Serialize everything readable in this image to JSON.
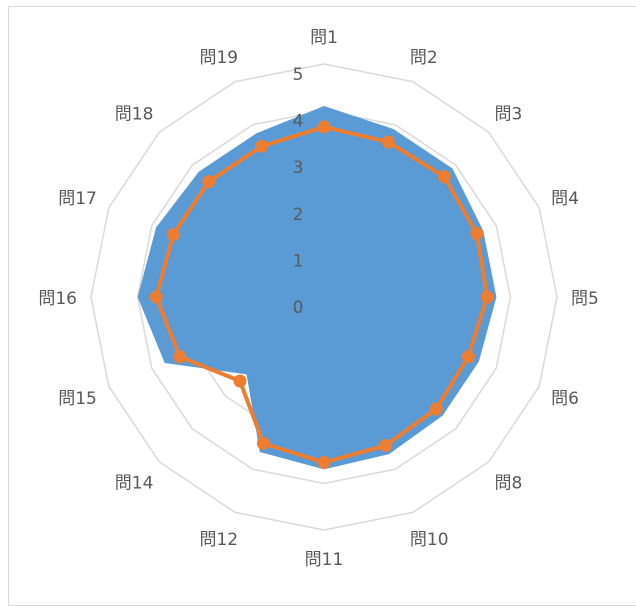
{
  "chart_data": {
    "type": "radar",
    "title": "",
    "categories": [
      "問1",
      "問2",
      "問3",
      "問4",
      "問5",
      "問6",
      "問8",
      "問10",
      "問11",
      "問12",
      "問14",
      "問15",
      "問16",
      "問17",
      "問18",
      "問19"
    ],
    "rlim": [
      0,
      5
    ],
    "ticks": [
      "0",
      "1",
      "2",
      "3",
      "4",
      "5"
    ],
    "grid": true,
    "legend": "none",
    "series": [
      {
        "type": "area",
        "values": [
          4.1,
          3.9,
          3.9,
          3.7,
          3.7,
          3.6,
          3.6,
          3.65,
          3.7,
          3.6,
          2.35,
          3.7,
          4.0,
          3.9,
          3.8,
          3.8
        ],
        "color": "#5b9bd5"
      },
      {
        "type": "line",
        "values": [
          3.65,
          3.6,
          3.65,
          3.55,
          3.5,
          3.35,
          3.4,
          3.45,
          3.55,
          3.4,
          2.55,
          3.35,
          3.6,
          3.5,
          3.5,
          3.5
        ],
        "color": "#ed7d31"
      }
    ]
  }
}
